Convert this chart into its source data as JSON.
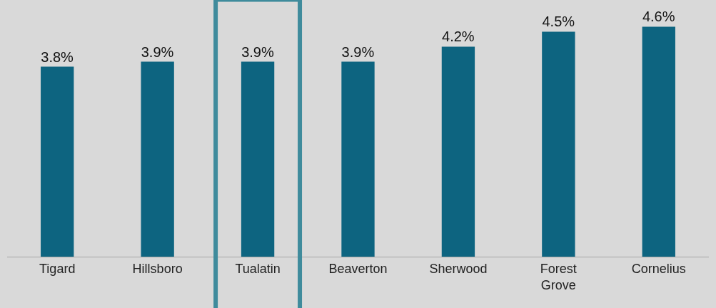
{
  "chart_data": {
    "type": "bar",
    "categories": [
      "Tigard",
      "Hillsboro",
      "Tualatin",
      "Beaverton",
      "Sherwood",
      "Forest Grove",
      "Cornelius"
    ],
    "values": [
      3.8,
      3.9,
      3.9,
      3.9,
      4.2,
      4.5,
      4.6
    ],
    "value_labels": [
      "3.8%",
      "3.9%",
      "3.9%",
      "3.9%",
      "4.2%",
      "4.5%",
      "4.6%"
    ],
    "color": "#0d6480",
    "grid": false,
    "legend": false
  }
}
